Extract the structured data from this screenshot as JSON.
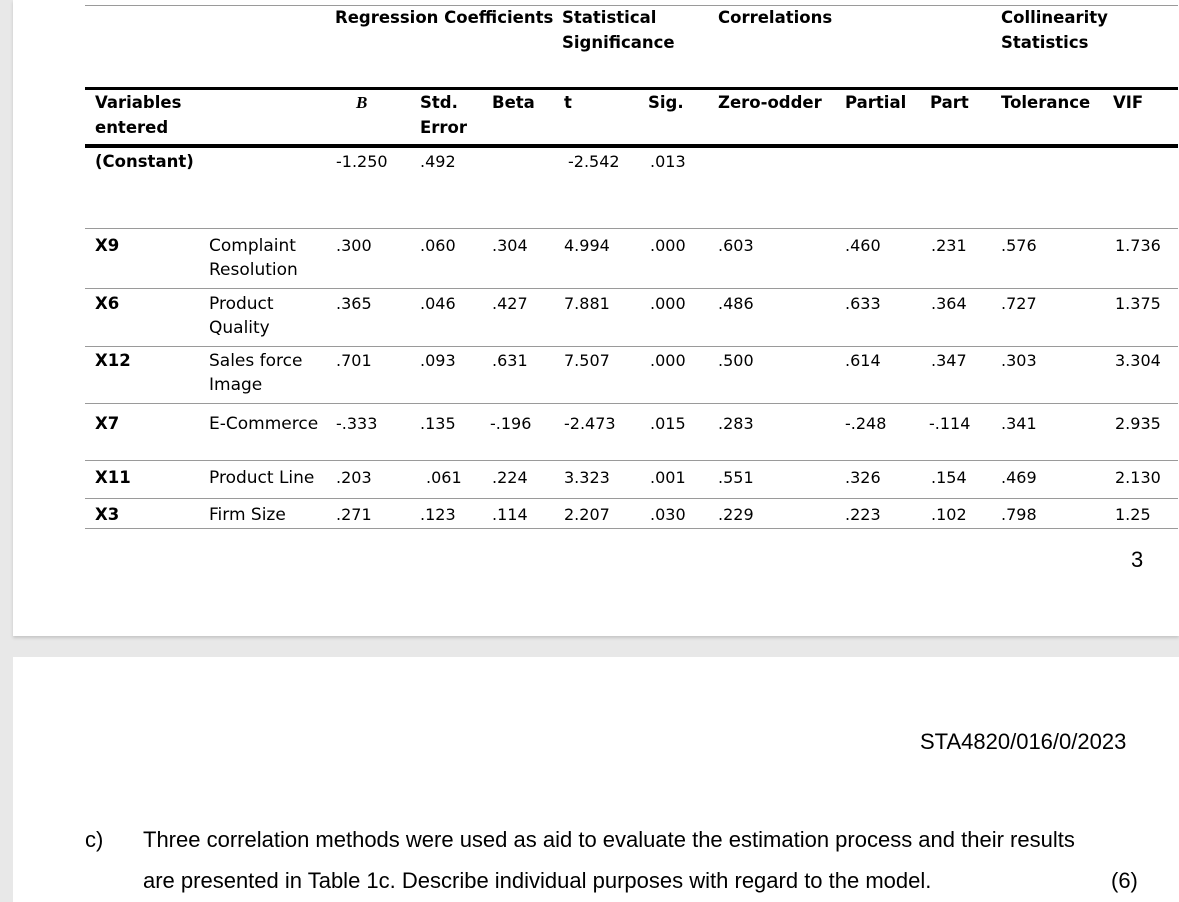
{
  "table": {
    "group_headers": {
      "regression": "Regression Coefficients",
      "stat_sig_1": "Statistical",
      "stat_sig_2": "Significance",
      "correlations": "Correlations",
      "collin_1": "Collinearity",
      "collin_2": "Statistics"
    },
    "col_headers": {
      "variables_1": "Variables",
      "variables_2": "entered",
      "b": "B",
      "std_1": "Std.",
      "std_2": "Error",
      "beta": "Beta",
      "t": "t",
      "sig": "Sig.",
      "zero": "Zero-odder",
      "partial": "Partial",
      "part": "Part",
      "tolerance": "Tolerance",
      "vif": "VIF"
    },
    "constant": {
      "label": "(Constant)",
      "b": "-1.250",
      "se": ".492",
      "t": "-2.542",
      "sig": ".013"
    },
    "rows": [
      {
        "var": "X9",
        "name1": "Complaint",
        "name2": "Resolution",
        "b": ".300",
        "se": ".060",
        "beta": ".304",
        "t": "4.994",
        "sig": ".000",
        "zero": ".603",
        "partial": ".460",
        "part": ".231",
        "tol": ".576",
        "vif": "1.736"
      },
      {
        "var": "X6",
        "name1": "Product",
        "name2": "Quality",
        "b": ".365",
        "se": ".046",
        "beta": ".427",
        "t": "7.881",
        "sig": ".000",
        "zero": ".486",
        "partial": ".633",
        "part": ".364",
        "tol": ".727",
        "vif": "1.375"
      },
      {
        "var": "X12",
        "name1": "Sales force",
        "name2": "Image",
        "b": ".701",
        "se": ".093",
        "beta": ".631",
        "t": "7.507",
        "sig": ".000",
        "zero": ".500",
        "partial": ".614",
        "part": ".347",
        "tol": ".303",
        "vif": "3.304"
      },
      {
        "var": "X7",
        "name1": "E-Commerce",
        "name2": "",
        "b": "-.333",
        "se": ".135",
        "beta": "-.196",
        "t": "-2.473",
        "sig": ".015",
        "zero": ".283",
        "partial": "-.248",
        "part": "-.114",
        "tol": ".341",
        "vif": "2.935"
      },
      {
        "var": "X11",
        "name1": "Product Line",
        "name2": "",
        "b": ".203",
        "se": ".061",
        "beta": ".224",
        "t": "3.323",
        "sig": ".001",
        "zero": ".551",
        "partial": ".326",
        "part": ".154",
        "tol": ".469",
        "vif": "2.130"
      },
      {
        "var": "X3",
        "name1": "Firm Size",
        "name2": "",
        "b": ".271",
        "se": ".123",
        "beta": ".114",
        "t": "2.207",
        "sig": ".030",
        "zero": ".229",
        "partial": ".223",
        "part": ".102",
        "tol": ".798",
        "vif": "1.25"
      }
    ],
    "page_number": "3"
  },
  "page2": {
    "header_code": "STA4820/016/0/2023",
    "question_label": "c)",
    "question_line1": "Three correlation methods were used as aid to evaluate the estimation process and their results",
    "question_line2": "are presented in Table 1c.  Describe individual purposes with regard to the model.",
    "marks": "(6)"
  }
}
